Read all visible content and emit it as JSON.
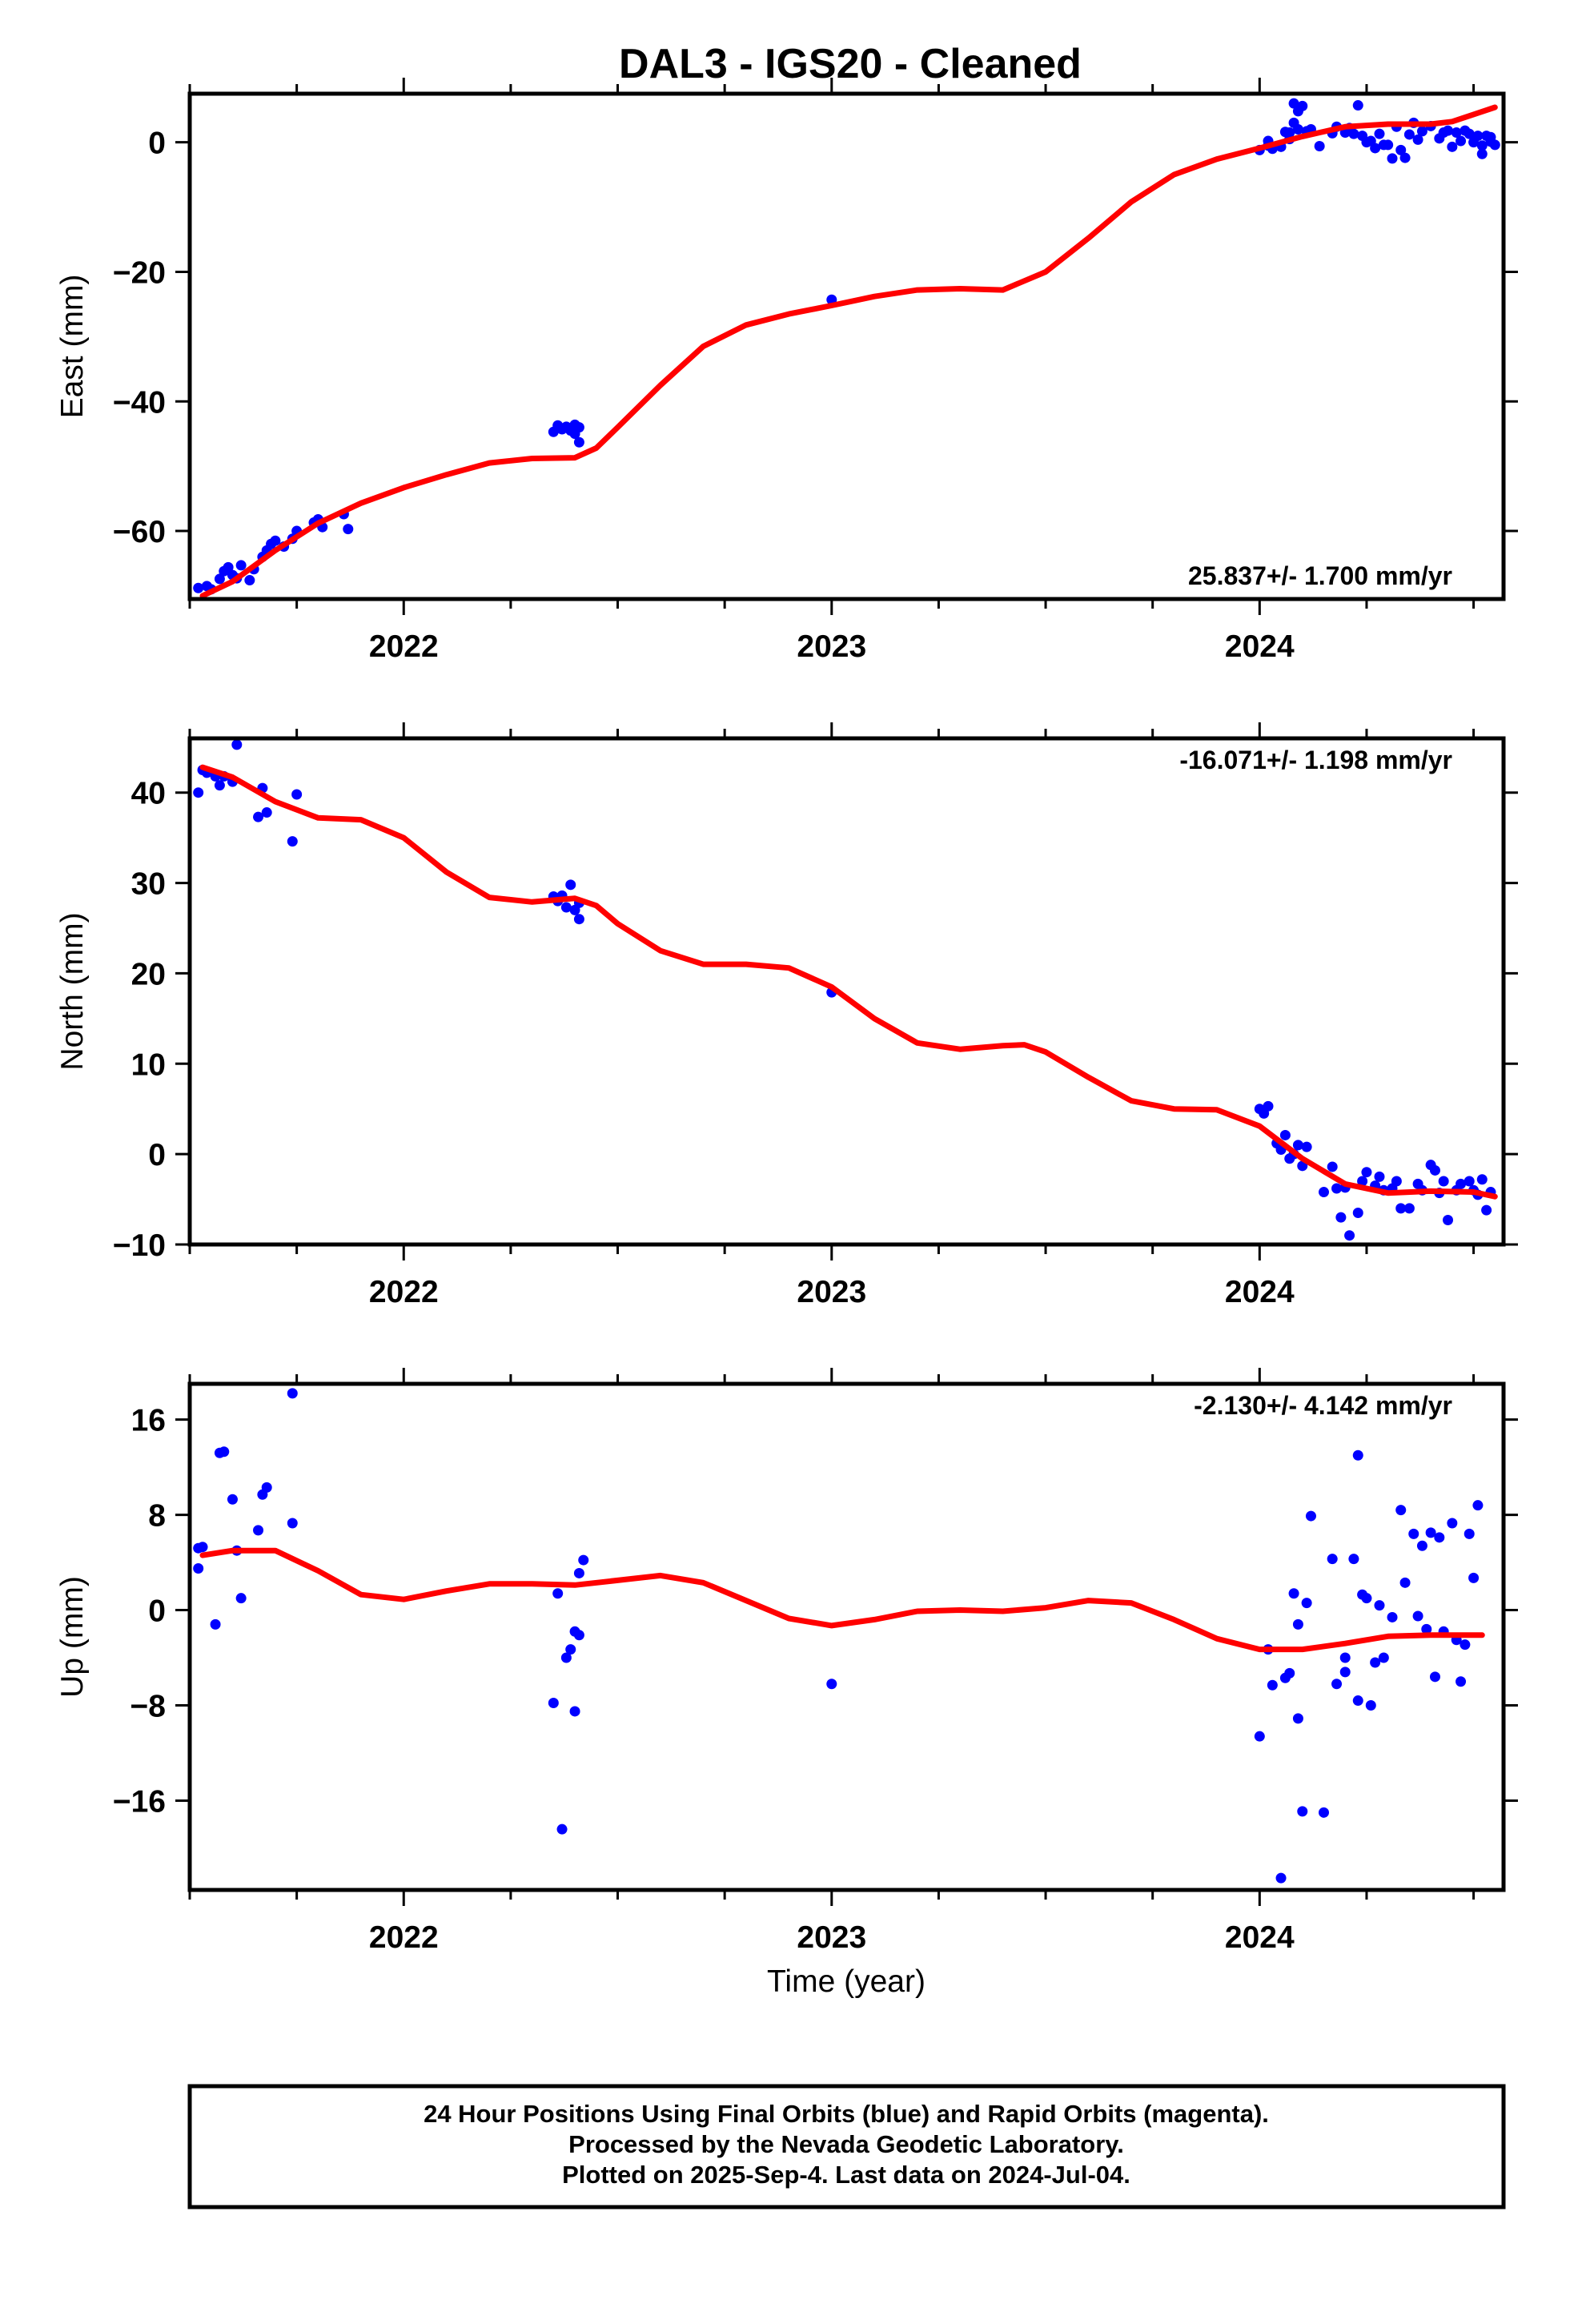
{
  "title": "DAL3  - IGS20 - Cleaned",
  "xlabel": "Time (year)",
  "footer": {
    "lines": [
      "24 Hour Positions Using Final Orbits (blue) and Rapid Orbits (magenta).",
      "Processed by the Nevada Geodetic Laboratory.",
      "Plotted on 2025-Sep-4. Last data on 2024-Jul-04."
    ]
  },
  "colors": {
    "data": "#0000ff",
    "model": "#ff0000",
    "axis": "#000000"
  },
  "chart_data": [
    {
      "type": "scatter",
      "name": "east",
      "ylabel": "East (mm)",
      "rate": "25.837+/- 1.700 mm/yr",
      "rate_position": "bottom-right",
      "xlim": [
        2021.5,
        2024.57
      ],
      "ylim": [
        -70.5,
        7.5
      ],
      "yticks": [
        0,
        -20,
        -40,
        -60
      ],
      "xticks": [
        2022,
        2023,
        2024
      ],
      "points": [
        [
          2021.52,
          -68.8
        ],
        [
          2021.54,
          -68.5
        ],
        [
          2021.55,
          -69.0
        ],
        [
          2021.57,
          -67.4
        ],
        [
          2021.58,
          -66.2
        ],
        [
          2021.59,
          -65.6
        ],
        [
          2021.6,
          -66.8
        ],
        [
          2021.61,
          -67.3
        ],
        [
          2021.62,
          -65.3
        ],
        [
          2021.64,
          -67.6
        ],
        [
          2021.65,
          -65.9
        ],
        [
          2021.67,
          -64.0
        ],
        [
          2021.68,
          -63.0
        ],
        [
          2021.69,
          -62.0
        ],
        [
          2021.7,
          -61.5
        ],
        [
          2021.72,
          -62.4
        ],
        [
          2021.74,
          -61.2
        ],
        [
          2021.75,
          -60.0
        ],
        [
          2021.79,
          -58.7
        ],
        [
          2021.8,
          -58.2
        ],
        [
          2021.81,
          -59.4
        ],
        [
          2021.86,
          -57.4
        ],
        [
          2021.87,
          -59.7
        ],
        [
          2022.35,
          -44.7
        ],
        [
          2022.36,
          -43.7
        ],
        [
          2022.37,
          -44.3
        ],
        [
          2022.38,
          -43.9
        ],
        [
          2022.39,
          -44.5
        ],
        [
          2022.4,
          -43.6
        ],
        [
          2022.4,
          -45.0
        ],
        [
          2022.41,
          -44.0
        ],
        [
          2022.41,
          -46.3
        ],
        [
          2023.0,
          -24.3
        ],
        [
          2024.0,
          -1.2
        ],
        [
          2024.02,
          -0.5
        ],
        [
          2024.02,
          0.2
        ],
        [
          2024.03,
          -1.0
        ],
        [
          2024.05,
          -0.7
        ],
        [
          2024.06,
          1.6
        ],
        [
          2024.07,
          1.5
        ],
        [
          2024.07,
          0.5
        ],
        [
          2024.08,
          3.0
        ],
        [
          2024.09,
          2.0
        ],
        [
          2024.08,
          6.0
        ],
        [
          2024.09,
          4.8
        ],
        [
          2024.1,
          5.6
        ],
        [
          2024.11,
          1.7
        ],
        [
          2024.12,
          2.0
        ],
        [
          2024.14,
          -0.6
        ],
        [
          2024.17,
          1.4
        ],
        [
          2024.18,
          2.4
        ],
        [
          2024.2,
          1.5
        ],
        [
          2024.21,
          2.2
        ],
        [
          2024.22,
          1.3
        ],
        [
          2024.23,
          5.7
        ],
        [
          2024.24,
          1.0
        ],
        [
          2024.25,
          0.0
        ],
        [
          2024.26,
          0.2
        ],
        [
          2024.27,
          -0.9
        ],
        [
          2024.28,
          1.3
        ],
        [
          2024.29,
          -0.4
        ],
        [
          2024.3,
          -0.4
        ],
        [
          2024.31,
          -2.5
        ],
        [
          2024.32,
          2.4
        ],
        [
          2024.33,
          -1.2
        ],
        [
          2024.34,
          -2.4
        ],
        [
          2024.35,
          1.2
        ],
        [
          2024.36,
          3.0
        ],
        [
          2024.37,
          0.4
        ],
        [
          2024.38,
          1.7
        ],
        [
          2024.4,
          2.5
        ],
        [
          2024.42,
          0.6
        ],
        [
          2024.43,
          1.5
        ],
        [
          2024.44,
          1.8
        ],
        [
          2024.45,
          -0.7
        ],
        [
          2024.46,
          1.5
        ],
        [
          2024.47,
          0.2
        ],
        [
          2024.48,
          1.8
        ],
        [
          2024.49,
          1.3
        ],
        [
          2024.5,
          0.0
        ],
        [
          2024.51,
          1.0
        ],
        [
          2024.52,
          -0.5
        ],
        [
          2024.52,
          -1.8
        ],
        [
          2024.53,
          1.0
        ],
        [
          2024.54,
          0.1
        ],
        [
          2024.54,
          0.8
        ],
        [
          2024.55,
          -0.4
        ]
      ],
      "model": [
        [
          2021.53,
          -70.0
        ],
        [
          2021.6,
          -67.8
        ],
        [
          2021.7,
          -63.0
        ],
        [
          2021.8,
          -58.8
        ],
        [
          2021.9,
          -55.7
        ],
        [
          2022.0,
          -53.3
        ],
        [
          2022.1,
          -51.3
        ],
        [
          2022.2,
          -49.5
        ],
        [
          2022.3,
          -48.8
        ],
        [
          2022.4,
          -48.7
        ],
        [
          2022.45,
          -47.2
        ],
        [
          2022.5,
          -44.0
        ],
        [
          2022.6,
          -37.5
        ],
        [
          2022.7,
          -31.5
        ],
        [
          2022.8,
          -28.2
        ],
        [
          2022.9,
          -26.5
        ],
        [
          2023.0,
          -25.2
        ],
        [
          2023.1,
          -23.8
        ],
        [
          2023.2,
          -22.8
        ],
        [
          2023.3,
          -22.6
        ],
        [
          2023.4,
          -22.8
        ],
        [
          2023.5,
          -20.0
        ],
        [
          2023.6,
          -14.8
        ],
        [
          2023.7,
          -9.2
        ],
        [
          2023.8,
          -5.0
        ],
        [
          2023.9,
          -2.6
        ],
        [
          2024.0,
          -0.9
        ],
        [
          2024.1,
          0.9
        ],
        [
          2024.2,
          2.4
        ],
        [
          2024.3,
          2.8
        ],
        [
          2024.4,
          2.8
        ],
        [
          2024.45,
          3.2
        ],
        [
          2024.5,
          4.3
        ],
        [
          2024.55,
          5.4
        ]
      ]
    },
    {
      "type": "scatter",
      "name": "north",
      "ylabel": "North (mm)",
      "rate": "-16.071+/- 1.198 mm/yr",
      "rate_position": "top-right",
      "xlim": [
        2021.5,
        2024.57
      ],
      "ylim": [
        -10,
        46
      ],
      "yticks": [
        40,
        30,
        20,
        10,
        0,
        -10
      ],
      "xticks": [
        2022,
        2023,
        2024
      ],
      "points": [
        [
          2021.52,
          40.0
        ],
        [
          2021.53,
          42.5
        ],
        [
          2021.54,
          42.2
        ],
        [
          2021.56,
          41.8
        ],
        [
          2021.57,
          40.8
        ],
        [
          2021.58,
          41.8
        ],
        [
          2021.6,
          41.2
        ],
        [
          2021.61,
          45.3
        ],
        [
          2021.66,
          37.3
        ],
        [
          2021.67,
          40.5
        ],
        [
          2021.68,
          37.8
        ],
        [
          2021.74,
          34.6
        ],
        [
          2021.75,
          39.8
        ],
        [
          2022.35,
          28.5
        ],
        [
          2022.36,
          28.0
        ],
        [
          2022.37,
          28.6
        ],
        [
          2022.38,
          27.3
        ],
        [
          2022.39,
          29.8
        ],
        [
          2022.4,
          27.0
        ],
        [
          2022.41,
          26.0
        ],
        [
          2022.41,
          27.8
        ],
        [
          2023.0,
          17.9
        ],
        [
          2024.0,
          5.0
        ],
        [
          2024.01,
          4.5
        ],
        [
          2024.02,
          5.3
        ],
        [
          2024.04,
          1.2
        ],
        [
          2024.05,
          0.5
        ],
        [
          2024.06,
          2.1
        ],
        [
          2024.07,
          -0.5
        ],
        [
          2024.08,
          0.0
        ],
        [
          2024.09,
          1.0
        ],
        [
          2024.1,
          -1.3
        ],
        [
          2024.11,
          0.8
        ],
        [
          2024.15,
          -4.2
        ],
        [
          2024.17,
          -1.4
        ],
        [
          2024.18,
          -3.8
        ],
        [
          2024.19,
          -7.0
        ],
        [
          2024.2,
          -3.7
        ],
        [
          2024.21,
          -9.0
        ],
        [
          2024.23,
          -6.5
        ],
        [
          2024.24,
          -3.0
        ],
        [
          2024.25,
          -2.0
        ],
        [
          2024.27,
          -3.5
        ],
        [
          2024.28,
          -2.5
        ],
        [
          2024.29,
          -4.0
        ],
        [
          2024.31,
          -3.8
        ],
        [
          2024.32,
          -3.0
        ],
        [
          2024.33,
          -6.0
        ],
        [
          2024.35,
          -6.0
        ],
        [
          2024.37,
          -3.3
        ],
        [
          2024.38,
          -4.0
        ],
        [
          2024.4,
          -1.2
        ],
        [
          2024.41,
          -1.8
        ],
        [
          2024.42,
          -4.3
        ],
        [
          2024.43,
          -3.0
        ],
        [
          2024.44,
          -7.3
        ],
        [
          2024.46,
          -4.0
        ],
        [
          2024.47,
          -3.3
        ],
        [
          2024.49,
          -3.0
        ],
        [
          2024.5,
          -4.0
        ],
        [
          2024.51,
          -4.5
        ],
        [
          2024.52,
          -2.8
        ],
        [
          2024.53,
          -6.2
        ],
        [
          2024.54,
          -4.2
        ]
      ],
      "model": [
        [
          2021.53,
          42.8
        ],
        [
          2021.6,
          41.7
        ],
        [
          2021.7,
          39.0
        ],
        [
          2021.8,
          37.2
        ],
        [
          2021.9,
          37.0
        ],
        [
          2022.0,
          35.0
        ],
        [
          2022.1,
          31.2
        ],
        [
          2022.2,
          28.4
        ],
        [
          2022.3,
          27.9
        ],
        [
          2022.4,
          28.3
        ],
        [
          2022.45,
          27.5
        ],
        [
          2022.5,
          25.5
        ],
        [
          2022.6,
          22.5
        ],
        [
          2022.7,
          21.0
        ],
        [
          2022.8,
          21.0
        ],
        [
          2022.9,
          20.6
        ],
        [
          2023.0,
          18.5
        ],
        [
          2023.1,
          15.0
        ],
        [
          2023.2,
          12.3
        ],
        [
          2023.3,
          11.6
        ],
        [
          2023.4,
          12.0
        ],
        [
          2023.45,
          12.1
        ],
        [
          2023.5,
          11.3
        ],
        [
          2023.6,
          8.5
        ],
        [
          2023.7,
          5.9
        ],
        [
          2023.8,
          5.0
        ],
        [
          2023.9,
          4.9
        ],
        [
          2024.0,
          3.1
        ],
        [
          2024.1,
          -0.5
        ],
        [
          2024.2,
          -3.3
        ],
        [
          2024.3,
          -4.3
        ],
        [
          2024.4,
          -4.1
        ],
        [
          2024.5,
          -4.2
        ],
        [
          2024.55,
          -4.7
        ]
      ]
    },
    {
      "type": "scatter",
      "name": "up",
      "ylabel": "Up (mm)",
      "rate": "-2.130+/- 4.142 mm/yr",
      "rate_position": "top-right",
      "xlim": [
        2021.5,
        2024.57
      ],
      "ylim": [
        -23.5,
        19
      ],
      "yticks": [
        16,
        8,
        0,
        -8,
        -16
      ],
      "xticks": [
        2022,
        2023,
        2024
      ],
      "points": [
        [
          2021.52,
          5.2
        ],
        [
          2021.53,
          5.3
        ],
        [
          2021.52,
          3.5
        ],
        [
          2021.56,
          -1.2
        ],
        [
          2021.57,
          13.2
        ],
        [
          2021.58,
          13.3
        ],
        [
          2021.6,
          9.3
        ],
        [
          2021.61,
          5.0
        ],
        [
          2021.62,
          1.0
        ],
        [
          2021.66,
          6.7
        ],
        [
          2021.67,
          9.7
        ],
        [
          2021.68,
          10.3
        ],
        [
          2021.74,
          7.3
        ],
        [
          2021.74,
          18.2
        ],
        [
          2022.35,
          -7.8
        ],
        [
          2022.36,
          1.4
        ],
        [
          2022.37,
          -18.4
        ],
        [
          2022.38,
          -4.0
        ],
        [
          2022.39,
          -3.3
        ],
        [
          2022.4,
          -8.5
        ],
        [
          2022.4,
          -1.8
        ],
        [
          2022.41,
          -2.1
        ],
        [
          2022.41,
          3.1
        ],
        [
          2022.42,
          4.2
        ],
        [
          2023.0,
          -6.2
        ],
        [
          2024.0,
          -10.6
        ],
        [
          2024.02,
          -3.3
        ],
        [
          2024.03,
          -6.3
        ],
        [
          2024.05,
          -22.5
        ],
        [
          2024.06,
          -5.7
        ],
        [
          2024.07,
          -5.3
        ],
        [
          2024.08,
          1.4
        ],
        [
          2024.09,
          -9.1
        ],
        [
          2024.09,
          -1.2
        ],
        [
          2024.1,
          -16.9
        ],
        [
          2024.11,
          0.6
        ],
        [
          2024.12,
          7.9
        ],
        [
          2024.15,
          -17.0
        ],
        [
          2024.17,
          4.3
        ],
        [
          2024.18,
          -6.2
        ],
        [
          2024.2,
          -5.2
        ],
        [
          2024.2,
          -4.0
        ],
        [
          2024.22,
          4.3
        ],
        [
          2024.23,
          -7.6
        ],
        [
          2024.23,
          13.0
        ],
        [
          2024.24,
          1.3
        ],
        [
          2024.25,
          1.0
        ],
        [
          2024.26,
          -8.0
        ],
        [
          2024.27,
          -4.4
        ],
        [
          2024.28,
          0.4
        ],
        [
          2024.29,
          -4.0
        ],
        [
          2024.31,
          -0.6
        ],
        [
          2024.33,
          8.4
        ],
        [
          2024.34,
          2.3
        ],
        [
          2024.36,
          6.4
        ],
        [
          2024.37,
          -0.5
        ],
        [
          2024.38,
          5.4
        ],
        [
          2024.39,
          -1.6
        ],
        [
          2024.4,
          6.5
        ],
        [
          2024.41,
          -5.6
        ],
        [
          2024.42,
          6.1
        ],
        [
          2024.43,
          -1.8
        ],
        [
          2024.45,
          7.3
        ],
        [
          2024.46,
          -2.5
        ],
        [
          2024.47,
          -6.0
        ],
        [
          2024.48,
          -2.9
        ],
        [
          2024.49,
          6.4
        ],
        [
          2024.5,
          2.7
        ],
        [
          2024.51,
          8.8
        ]
      ],
      "model": [
        [
          2021.53,
          4.6
        ],
        [
          2021.6,
          5.0
        ],
        [
          2021.7,
          5.0
        ],
        [
          2021.8,
          3.3
        ],
        [
          2021.9,
          1.3
        ],
        [
          2022.0,
          0.9
        ],
        [
          2022.1,
          1.6
        ],
        [
          2022.2,
          2.2
        ],
        [
          2022.3,
          2.2
        ],
        [
          2022.4,
          2.1
        ],
        [
          2022.5,
          2.5
        ],
        [
          2022.6,
          2.9
        ],
        [
          2022.7,
          2.3
        ],
        [
          2022.8,
          0.8
        ],
        [
          2022.9,
          -0.7
        ],
        [
          2023.0,
          -1.3
        ],
        [
          2023.1,
          -0.8
        ],
        [
          2023.2,
          -0.1
        ],
        [
          2023.3,
          0.0
        ],
        [
          2023.4,
          -0.1
        ],
        [
          2023.5,
          0.2
        ],
        [
          2023.6,
          0.8
        ],
        [
          2023.7,
          0.6
        ],
        [
          2023.8,
          -0.8
        ],
        [
          2023.9,
          -2.4
        ],
        [
          2024.0,
          -3.3
        ],
        [
          2024.1,
          -3.3
        ],
        [
          2024.2,
          -2.8
        ],
        [
          2024.3,
          -2.2
        ],
        [
          2024.4,
          -2.1
        ],
        [
          2024.5,
          -2.1
        ],
        [
          2024.52,
          -2.1
        ]
      ]
    }
  ]
}
